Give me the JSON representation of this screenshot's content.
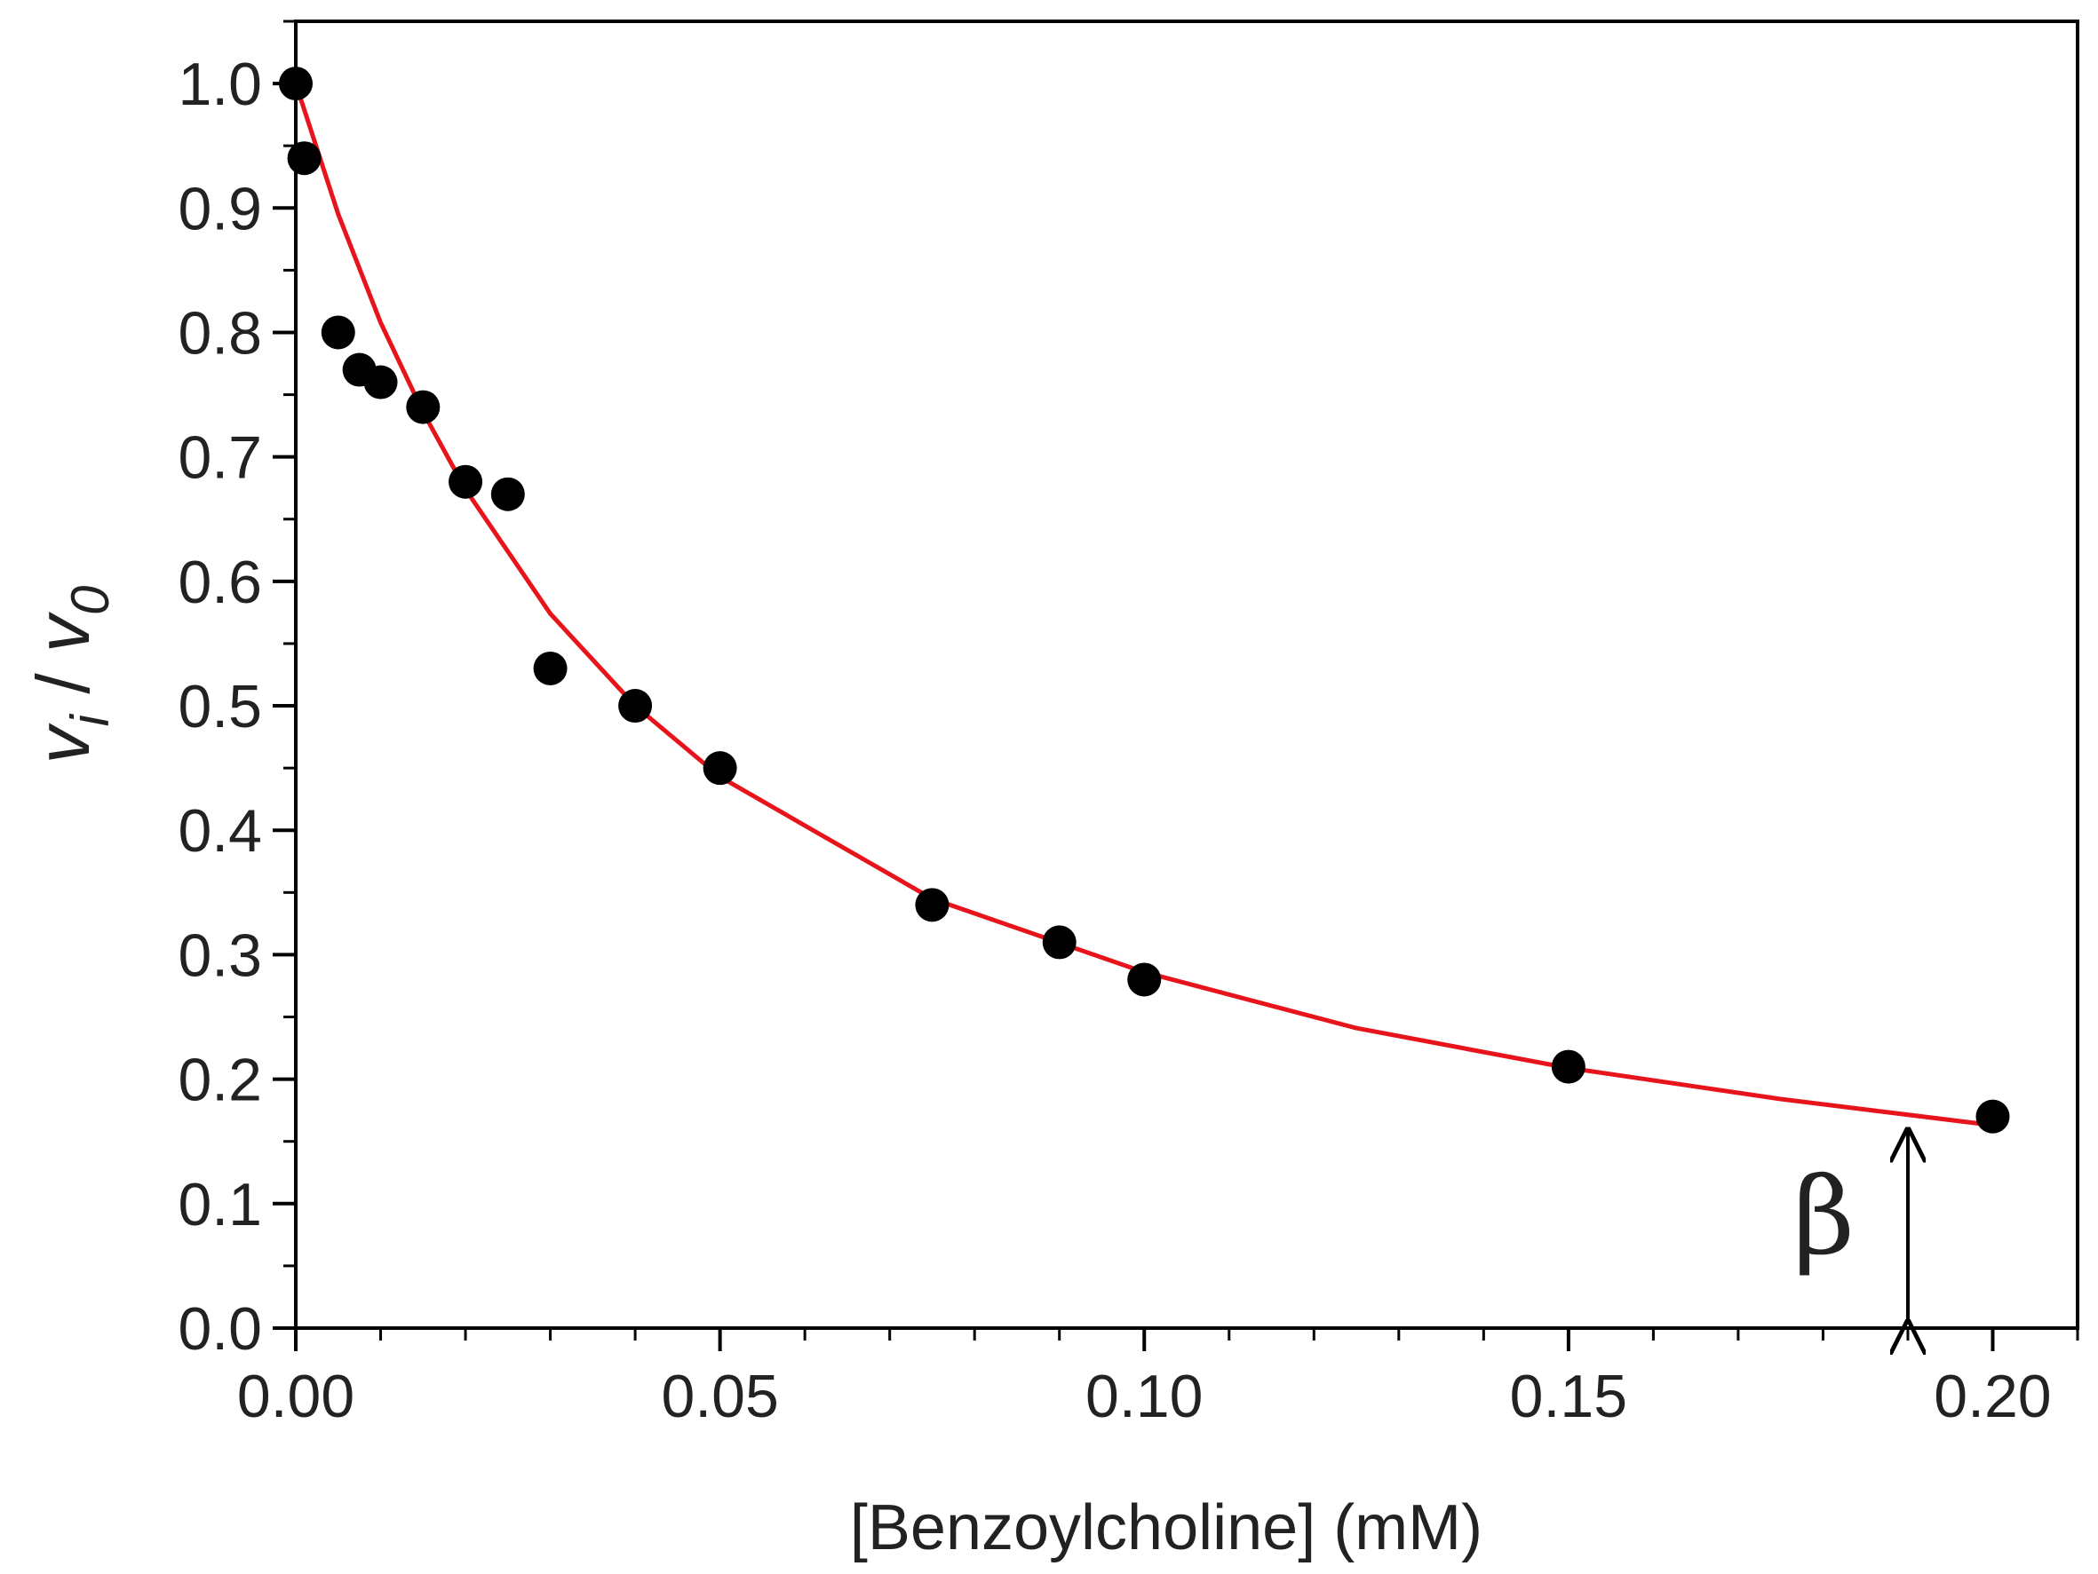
{
  "chart_data": {
    "type": "scatter",
    "xlabel": "[Benzoylcholine] (mM)",
    "ylabel": {
      "v": "v",
      "i": "i",
      "sep": " / ",
      "zero": "0"
    },
    "xlim": [
      0.0,
      0.21
    ],
    "ylim": [
      0.0,
      1.05
    ],
    "xticks": [
      {
        "value": 0.0,
        "label": "0.00"
      },
      {
        "value": 0.05,
        "label": "0.05"
      },
      {
        "value": 0.1,
        "label": "0.10"
      },
      {
        "value": 0.15,
        "label": "0.15"
      },
      {
        "value": 0.2,
        "label": "0.20"
      }
    ],
    "yticks": [
      {
        "value": 0.0,
        "label": "0.0"
      },
      {
        "value": 0.1,
        "label": "0.1"
      },
      {
        "value": 0.2,
        "label": "0.2"
      },
      {
        "value": 0.3,
        "label": "0.3"
      },
      {
        "value": 0.4,
        "label": "0.4"
      },
      {
        "value": 0.5,
        "label": "0.5"
      },
      {
        "value": 0.6,
        "label": "0.6"
      },
      {
        "value": 0.7,
        "label": "0.7"
      },
      {
        "value": 0.8,
        "label": "0.8"
      },
      {
        "value": 0.9,
        "label": "0.9"
      },
      {
        "value": 1.0,
        "label": "1.0"
      }
    ],
    "x_minor_step": 0.01,
    "y_minor_step": 0.05,
    "series": [
      {
        "name": "data",
        "style": "markers",
        "color": "#000000",
        "x": [
          0.0,
          0.001,
          0.005,
          0.0075,
          0.01,
          0.015,
          0.02,
          0.025,
          0.03,
          0.04,
          0.05,
          0.075,
          0.09,
          0.1,
          0.15,
          0.2
        ],
        "y": [
          1.0,
          0.94,
          0.8,
          0.77,
          0.76,
          0.74,
          0.68,
          0.67,
          0.53,
          0.5,
          0.45,
          0.34,
          0.31,
          0.28,
          0.21,
          0.17
        ]
      },
      {
        "name": "fit",
        "style": "line",
        "color": "#e8141b",
        "x": [
          0.0,
          0.005,
          0.01,
          0.015,
          0.02,
          0.03,
          0.04,
          0.05,
          0.075,
          0.1,
          0.125,
          0.15,
          0.175,
          0.2
        ],
        "y": [
          1.0,
          0.895,
          0.808,
          0.736,
          0.674,
          0.574,
          0.5,
          0.443,
          0.345,
          0.286,
          0.241,
          0.209,
          0.184,
          0.163
        ]
      }
    ],
    "annotations": [
      {
        "text": "β",
        "x": 0.19,
        "y_from": 0.0,
        "y_to": 0.163,
        "type": "double-arrow"
      }
    ]
  }
}
